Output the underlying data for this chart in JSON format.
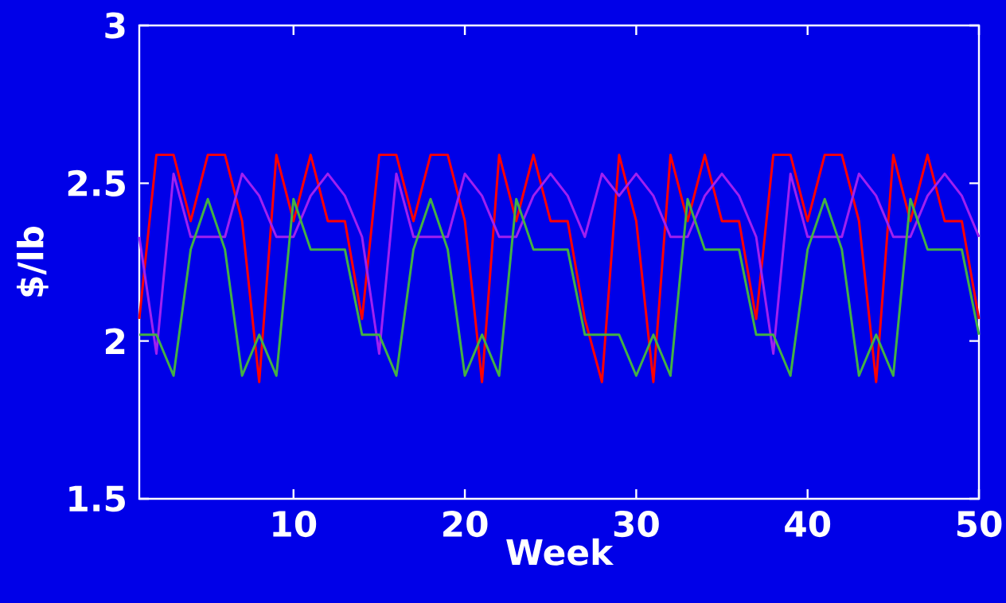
{
  "chart_data": {
    "type": "line",
    "xlabel": "Week",
    "ylabel": "$/lb",
    "x": [
      1,
      2,
      3,
      4,
      5,
      6,
      7,
      8,
      9,
      10,
      11,
      12,
      13,
      14,
      15,
      16,
      17,
      18,
      19,
      20,
      21,
      22,
      23,
      24,
      25,
      26,
      27,
      28,
      29,
      30,
      31,
      32,
      33,
      34,
      35,
      36,
      37,
      38,
      39,
      40,
      41,
      42,
      43,
      44,
      45,
      46,
      47,
      48,
      49,
      50
    ],
    "series": [
      {
        "color": "#ff0000",
        "values": [
          2.07,
          2.59,
          2.59,
          2.38,
          2.59,
          2.59,
          2.38,
          1.87,
          2.59,
          2.38,
          2.59,
          2.38,
          2.38,
          2.07,
          2.59,
          2.59,
          2.38,
          2.59,
          2.59,
          2.38,
          1.87,
          2.59,
          2.38,
          2.59,
          2.38,
          2.38,
          2.07,
          1.87,
          2.59,
          2.38,
          1.87,
          2.59,
          2.38,
          2.59,
          2.38,
          2.38,
          2.07,
          2.59,
          2.59,
          2.38,
          2.59,
          2.59,
          2.38,
          1.87,
          2.59,
          2.38,
          2.59,
          2.38,
          2.38,
          2.07
        ]
      },
      {
        "color": "#a020f0",
        "values": [
          2.33,
          1.96,
          2.53,
          2.33,
          2.33,
          2.33,
          2.53,
          2.46,
          2.33,
          2.33,
          2.46,
          2.53,
          2.46,
          2.33,
          1.96,
          2.53,
          2.33,
          2.33,
          2.33,
          2.53,
          2.46,
          2.33,
          2.33,
          2.46,
          2.53,
          2.46,
          2.33,
          2.53,
          2.46,
          2.53,
          2.46,
          2.33,
          2.33,
          2.46,
          2.53,
          2.46,
          2.33,
          1.96,
          2.53,
          2.33,
          2.33,
          2.33,
          2.53,
          2.46,
          2.33,
          2.33,
          2.46,
          2.53,
          2.46,
          2.33
        ]
      },
      {
        "color": "#44b044",
        "values": [
          2.02,
          2.02,
          1.89,
          2.29,
          2.45,
          2.29,
          1.89,
          2.02,
          1.89,
          2.45,
          2.29,
          2.29,
          2.29,
          2.02,
          2.02,
          1.89,
          2.29,
          2.45,
          2.29,
          1.89,
          2.02,
          1.89,
          2.45,
          2.29,
          2.29,
          2.29,
          2.02,
          2.02,
          2.02,
          1.89,
          2.02,
          1.89,
          2.45,
          2.29,
          2.29,
          2.29,
          2.02,
          2.02,
          1.89,
          2.29,
          2.45,
          2.29,
          1.89,
          2.02,
          1.89,
          2.45,
          2.29,
          2.29,
          2.29,
          2.02
        ]
      }
    ],
    "xlim": [
      1,
      50
    ],
    "ylim": [
      1.5,
      3
    ],
    "xticks": [
      10,
      20,
      30,
      40,
      50
    ],
    "yticks": [
      1.5,
      2,
      2.5,
      3
    ],
    "grid": false,
    "marker": "none",
    "line_style": "solid"
  }
}
